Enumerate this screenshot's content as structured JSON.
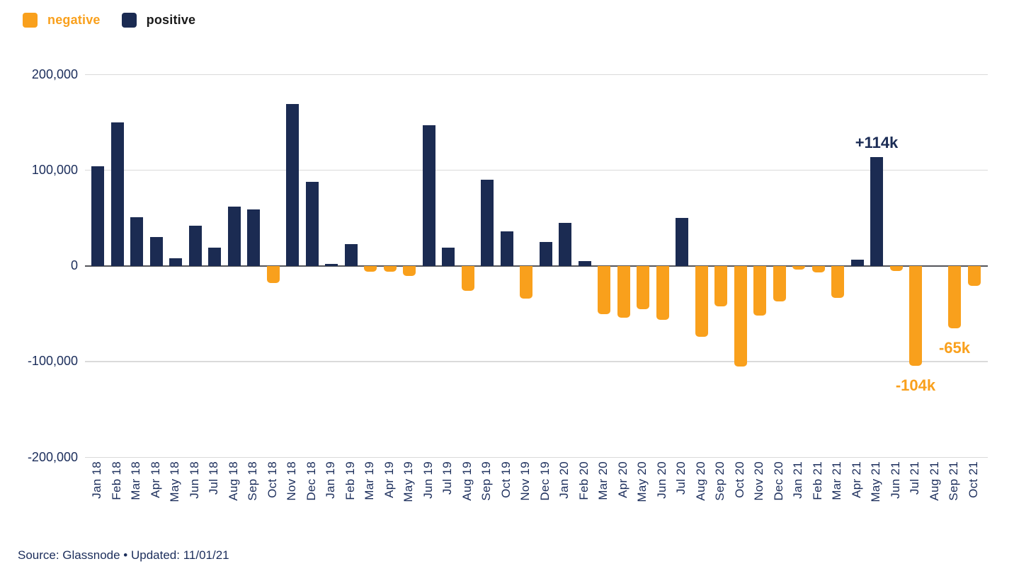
{
  "legend": {
    "items": [
      {
        "label": "negative",
        "color": "#f9a01c",
        "text_color": "#f9a01c"
      },
      {
        "label": "positive",
        "color": "#1b2b52",
        "text_color": "#1a1a1a"
      }
    ]
  },
  "chart_data": {
    "type": "bar",
    "title": "",
    "xlabel": "",
    "ylabel": "",
    "categories": [
      "Jan 18",
      "Feb 18",
      "Mar 18",
      "Apr 18",
      "May 18",
      "Jun 18",
      "Jul 18",
      "Aug 18",
      "Sep 18",
      "Oct 18",
      "Nov 18",
      "Dec 18",
      "Jan 19",
      "Feb 19",
      "Mar 19",
      "Apr 19",
      "May 19",
      "Jun 19",
      "Jul 19",
      "Aug 19",
      "Sep 19",
      "Oct 19",
      "Nov 19",
      "Dec 19",
      "Jan 20",
      "Feb 20",
      "Mar 20",
      "Apr 20",
      "May 20",
      "Jun 20",
      "Jul 20",
      "Aug 20",
      "Sep 20",
      "Oct 20",
      "Nov 20",
      "Dec 20",
      "Jan 21",
      "Feb 21",
      "Mar 21",
      "Apr 21",
      "May 21",
      "Jun 21",
      "Jul 21",
      "Aug 21",
      "Sep 21",
      "Oct 21"
    ],
    "values_thousands": [
      104,
      150,
      51,
      30,
      8,
      42,
      19,
      62,
      59,
      -18,
      169,
      88,
      2,
      23,
      -6,
      -6,
      -10,
      147,
      19,
      -26,
      90,
      36,
      -34,
      25,
      45,
      5,
      -50,
      -54,
      -45,
      -56,
      50,
      -74,
      -42,
      -105,
      -52,
      -37,
      -4,
      -7,
      -33,
      7,
      114,
      -5,
      -104,
      0,
      -65,
      -21
    ],
    "ylim": [
      -200000,
      200000
    ],
    "yticks": [
      {
        "value": 200000,
        "label": "200,000"
      },
      {
        "value": 100000,
        "label": "100,000"
      },
      {
        "value": 0,
        "label": "0"
      },
      {
        "value": -100000,
        "label": "-100,000"
      },
      {
        "value": -200000,
        "label": "-200,000"
      }
    ],
    "grid": true,
    "legend_position": "top-left",
    "positive_color": "#1b2b52",
    "negative_color": "#f9a01c",
    "annotations": [
      {
        "text": "+114k",
        "category": "May 21",
        "placement": "above",
        "color": "#1b2c55"
      },
      {
        "text": "-104k",
        "category": "Jul 21",
        "placement": "below",
        "color": "#f9a01c"
      },
      {
        "text": "-65k",
        "category": "Sep 21",
        "placement": "below",
        "color": "#f9a01c"
      }
    ]
  },
  "footer": {
    "source_text": "Source: Glassnode • Updated: 11/01/21"
  }
}
